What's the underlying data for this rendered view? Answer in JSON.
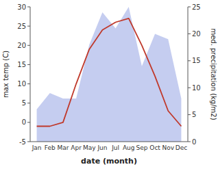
{
  "chart_data": {
    "type": "line",
    "xlabel": "date (month)",
    "ylabel": "max temp (C)",
    "y2label": "med. precipitation (kg/m2)",
    "categories": [
      "Jan",
      "Feb",
      "Mar",
      "Apr",
      "May",
      "Jun",
      "Jul",
      "Aug",
      "Sep",
      "Oct",
      "Nov",
      "Dec"
    ],
    "series": [
      {
        "type": "area",
        "axis": "y2",
        "color": "#c5cdf0",
        "values": [
          6,
          9,
          8,
          8,
          18,
          24,
          21,
          25,
          14,
          20,
          19,
          8
        ]
      },
      {
        "type": "line",
        "color": "#c0392b",
        "values": [
          -1,
          -1,
          0,
          10,
          19,
          24,
          26,
          27,
          20,
          12,
          3,
          -1
        ]
      }
    ],
    "ylim": [
      -5,
      30
    ],
    "yticks": [
      -5,
      0,
      5,
      10,
      15,
      20,
      25,
      30
    ],
    "y2lim": [
      0,
      25
    ],
    "y2ticks": [
      0,
      5,
      10,
      15,
      20,
      25
    ],
    "grid": false
  }
}
